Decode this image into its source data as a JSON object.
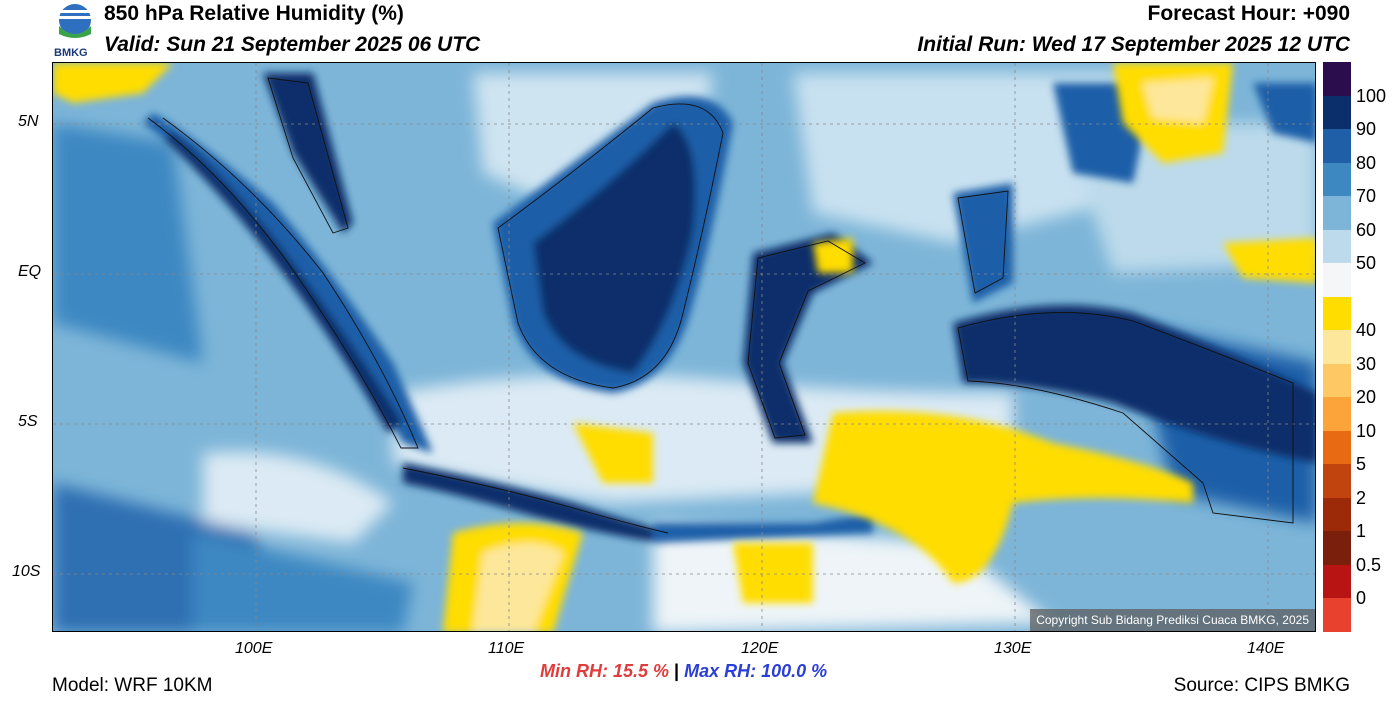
{
  "header": {
    "title": "850 hPa Relative Humidity (%)",
    "valid": "Valid: Sun 21 September 2025 06 UTC",
    "forecast_hour": "Forecast Hour: +090",
    "initial_run": "Initial Run: Wed 17 September 2025 12 UTC",
    "logo_text": "BMKG"
  },
  "footer": {
    "model": "Model: WRF 10KM",
    "min_rh": "Min RH:  15.5 %",
    "separator": "|",
    "max_rh": "Max RH: 100.0 %",
    "source": "Source: CIPS BMKG"
  },
  "copyright": "Copyright Sub Bidang Prediksi Cuaca BMKG, 2025",
  "axes": {
    "lat_ticks": [
      "5N",
      "EQ",
      "5S",
      "10S"
    ],
    "lon_ticks": [
      "100E",
      "110E",
      "120E",
      "130E",
      "140E"
    ]
  },
  "colorbar": {
    "labels": [
      "100",
      "90",
      "80",
      "70",
      "60",
      "50",
      "40",
      "30",
      "20",
      "10",
      "5",
      "2",
      "1",
      "0.5",
      "0"
    ],
    "colors": [
      "#2b0d4e",
      "#0b2f6a",
      "#1f5fa8",
      "#3e88c2",
      "#7db5d8",
      "#bcdaeb",
      "#f4f6f8",
      "#ffdd00",
      "#fde79a",
      "#fec864",
      "#fca43a",
      "#e86a12",
      "#c1440e",
      "#9c2a08",
      "#7a1f0c",
      "#b81414",
      "#e8412e"
    ]
  },
  "colors": {
    "min_rh": "#e03c3c",
    "max_rh": "#2b3fd6",
    "ocean_mid": "#7db5d8",
    "land_wet": "#0b2f6a",
    "dry": "#ffdd00"
  }
}
